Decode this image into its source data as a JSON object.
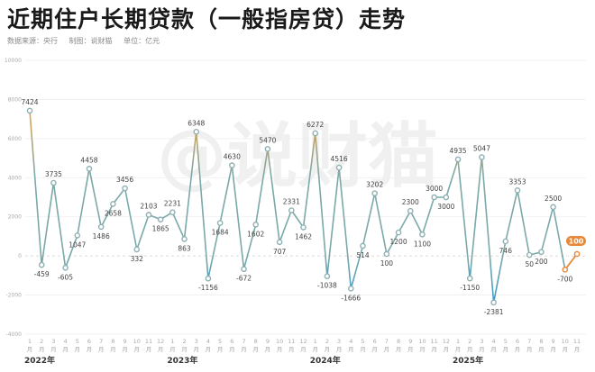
{
  "title": "近期住户长期贷款（一般指房贷）走势",
  "subtitle": {
    "source": "数据来源：央行",
    "maker": "制图：说财猫",
    "unit": "单位：亿元"
  },
  "watermark": "@说财猫",
  "colors": {
    "line_high": "#e8a24a",
    "line_mid": "#7aa9a8",
    "line_low": "#3b9bc9",
    "highlight": "#e8893a",
    "grid": "#eeeeee",
    "label": "#444444",
    "axis_text": "#aaaaaa"
  },
  "chart_data": {
    "type": "line",
    "title": "近期住户长期贷款（一般指房贷）走势",
    "xlabel": "",
    "ylabel": "亿元",
    "ylim": [
      -4000,
      10000
    ],
    "yticks": [
      10000,
      8000,
      6000,
      4000,
      2000,
      0,
      -2000,
      -4000
    ],
    "grid": true,
    "legend": "none",
    "year_labels": [
      {
        "label": "2022年",
        "start_index": 0
      },
      {
        "label": "2023年",
        "start_index": 12
      },
      {
        "label": "2024年",
        "start_index": 24
      },
      {
        "label": "2025年",
        "start_index": 36
      }
    ],
    "x": [
      "1月",
      "2月",
      "3月",
      "4月",
      "5月",
      "6月",
      "7月",
      "8月",
      "9月",
      "10月",
      "11月",
      "12月",
      "1月",
      "2月",
      "3月",
      "4月",
      "5月",
      "6月",
      "7月",
      "8月",
      "9月",
      "10月",
      "11月",
      "12月",
      "1月",
      "2月",
      "3月",
      "4月",
      "5月",
      "6月",
      "7月",
      "8月",
      "9月",
      "10月",
      "11月",
      "12月",
      "1月",
      "2月",
      "3月",
      "4月",
      "5月",
      "6月",
      "7月",
      "8月",
      "9月",
      "10月",
      "11月"
    ],
    "periods": [
      "2022-01",
      "2022-02",
      "2022-03",
      "2022-04",
      "2022-05",
      "2022-06",
      "2022-07",
      "2022-08",
      "2022-09",
      "2022-10",
      "2022-11",
      "2022-12",
      "2023-01",
      "2023-02",
      "2023-03",
      "2023-04",
      "2023-05",
      "2023-06",
      "2023-07",
      "2023-08",
      "2023-09",
      "2023-10",
      "2023-11",
      "2023-12",
      "2024-01",
      "2024-02",
      "2024-03",
      "2024-04",
      "2024-05",
      "2024-06",
      "2024-07",
      "2024-08",
      "2024-09",
      "2024-10",
      "2024-11",
      "2024-12",
      "2025-01",
      "2025-02",
      "2025-03",
      "2025-04",
      "2025-05",
      "2025-06",
      "2025-07",
      "2025-08",
      "2025-09",
      "2025-10",
      "2025-11"
    ],
    "series": [
      {
        "name": "住户长期贷款",
        "values": [
          7424,
          -459,
          3735,
          -605,
          1047,
          4458,
          1486,
          2658,
          3456,
          332,
          2103,
          1865,
          2231,
          863,
          6348,
          -1156,
          1684,
          4630,
          -672,
          1602,
          5470,
          707,
          2331,
          1462,
          6272,
          -1038,
          4516,
          -1666,
          514,
          3202,
          100,
          1200,
          2300,
          1100,
          3000,
          3000,
          4935,
          -1150,
          5047,
          -2381,
          746,
          3353,
          50,
          200,
          2500,
          -700,
          100
        ]
      }
    ],
    "highlighted_last": {
      "value": 100,
      "label": "100"
    }
  }
}
